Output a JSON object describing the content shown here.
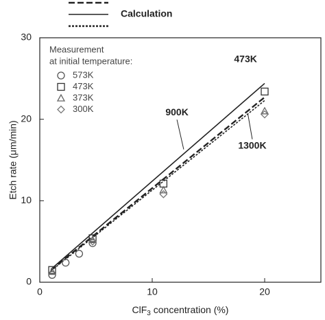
{
  "chart_data": {
    "type": "line",
    "legend_title": [
      "Measurement",
      "at initial temperature:"
    ],
    "xlabel": {
      "main": "ClF",
      "sub": "3",
      "rest": " concentration (%)"
    },
    "ylabel": "Etch rate (μm/min)",
    "xlim": [
      0,
      25
    ],
    "xticks": [
      0,
      10,
      20
    ],
    "ylim": [
      0,
      30
    ],
    "yticks": [
      0,
      10,
      20,
      30
    ],
    "series": [
      {
        "dash": "dashed",
        "color": "#222",
        "x": [
          1,
          20
        ],
        "values": [
          1.5,
          22.7
        ]
      },
      {
        "name": "Calculation",
        "dash": "solid",
        "color": "#222",
        "x": [
          1,
          20
        ],
        "values": [
          1.6,
          24.4
        ]
      },
      {
        "dash": "dotted",
        "color": "#222",
        "x": [
          1,
          20
        ],
        "values": [
          1.4,
          22.3
        ]
      },
      {
        "name": "573K",
        "marker": "circle",
        "color": "#555",
        "x": [
          1.1,
          2.3,
          3.5,
          4.7
        ],
        "values": [
          0.9,
          2.4,
          3.5,
          4.8
        ]
      },
      {
        "name": "473K",
        "marker": "square",
        "color": "#333",
        "x": [
          1.1,
          4.7,
          11,
          20
        ],
        "values": [
          1.5,
          5.4,
          12.1,
          23.4
        ]
      },
      {
        "name": "373K",
        "marker": "triangle",
        "color": "#666",
        "x": [
          1.1,
          4.7,
          11,
          20
        ],
        "values": [
          1.3,
          5.2,
          11.3,
          21
        ]
      },
      {
        "name": "300K",
        "marker": "diamond",
        "color": "#777",
        "x": [
          4.7,
          11,
          20
        ],
        "values": [
          5.0,
          10.8,
          20.6
        ]
      }
    ],
    "annotations": [
      {
        "text": "473K",
        "x": 18.3,
        "y": 27.3
      },
      {
        "text": "900K",
        "x": 12.2,
        "y": 20.8,
        "arrow_to": [
          12.8,
          16.3
        ]
      },
      {
        "text": "1300K",
        "x": 18.9,
        "y": 16.7,
        "arrow_to": [
          18.5,
          20.7
        ]
      }
    ]
  }
}
